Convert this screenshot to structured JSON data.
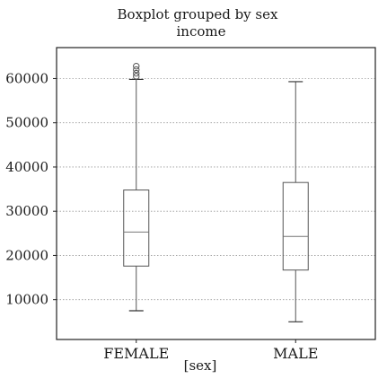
{
  "chart_data": {
    "type": "boxplot",
    "title": "Boxplot grouped by sex",
    "subtitle": "income",
    "xlabel": "[sex]",
    "ylabel": "",
    "categories": [
      "FEMALE",
      "MALE"
    ],
    "ylim": [
      1000,
      67000
    ],
    "yticks": [
      10000,
      20000,
      30000,
      40000,
      50000,
      60000
    ],
    "ytick_labels": [
      "10000",
      "20000",
      "30000",
      "40000",
      "50000",
      "60000"
    ],
    "grid": true,
    "boxes": [
      {
        "category": "FEMALE",
        "whisker_low": 7500,
        "q1": 17600,
        "median": 25300,
        "q3": 34800,
        "whisker_high": 59800,
        "fliers": [
          60500,
          61200,
          62000,
          62800
        ]
      },
      {
        "category": "MALE",
        "whisker_low": 5000,
        "q1": 16700,
        "median": 24300,
        "q3": 36500,
        "whisker_high": 59300,
        "fliers": []
      }
    ]
  }
}
